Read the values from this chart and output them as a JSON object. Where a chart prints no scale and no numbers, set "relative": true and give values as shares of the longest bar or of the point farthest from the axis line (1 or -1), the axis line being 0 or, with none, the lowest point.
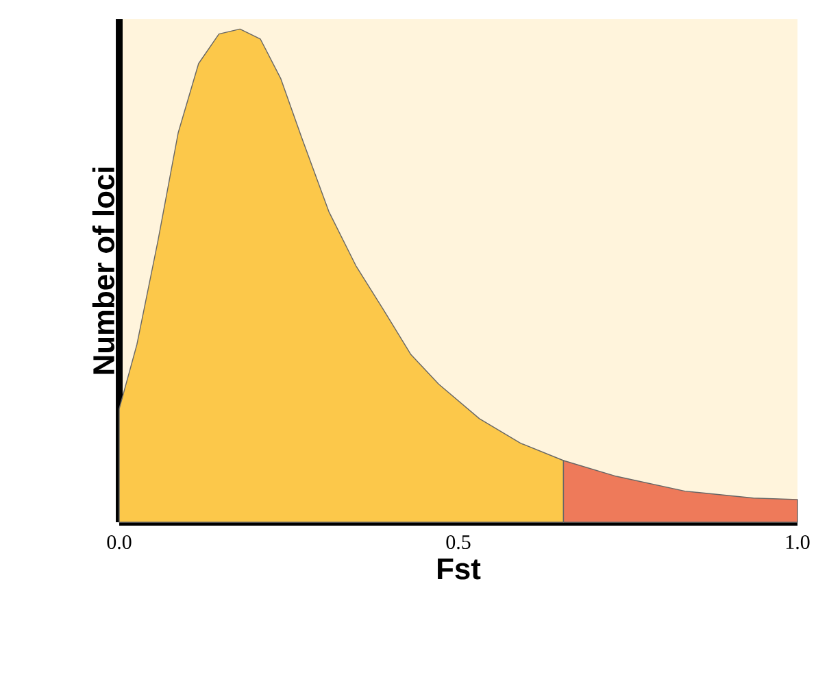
{
  "chart_data": {
    "type": "area",
    "relative": true,
    "xlabel": "Fst",
    "ylabel": "Number of loci",
    "xlim": [
      0,
      1
    ],
    "xticks": [
      {
        "value": 0,
        "label": "0.0"
      },
      0.5,
      {
        "value": 1,
        "label": "1.0"
      }
    ],
    "series": [
      {
        "color": "#fcc84a",
        "x": [
          0,
          0.026,
          0.057,
          0.087,
          0.117,
          0.147,
          0.178,
          0.208,
          0.238,
          0.269,
          0.309,
          0.349,
          0.39,
          0.43,
          0.471,
          0.531,
          0.592,
          0.655
        ],
        "values": [
          0.23,
          0.36,
          0.57,
          0.79,
          0.93,
          0.99,
          1.0,
          0.98,
          0.9,
          0.78,
          0.63,
          0.52,
          0.43,
          0.34,
          0.28,
          0.21,
          0.16,
          0.125
        ]
      },
      {
        "color": "#ee7a5a",
        "x": [
          0.655,
          0.733,
          0.834,
          0.935,
          1.0
        ],
        "values": [
          0.125,
          0.093,
          0.063,
          0.049,
          0.046
        ]
      }
    ]
  }
}
